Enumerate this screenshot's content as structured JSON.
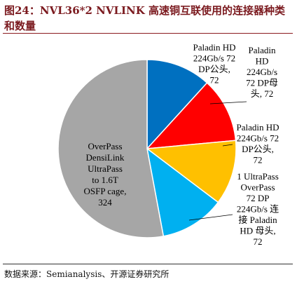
{
  "figure": {
    "title": "图24：NVL36*2 NVLINK 高速铜互联使用的连接器种类和数量",
    "source": "数据来源：Semianalysis、开源证券研究所"
  },
  "chart_data": {
    "type": "pie",
    "title": "",
    "slices": [
      {
        "label": "Paladin HD 224Gb/s 72 DP公头, 72",
        "value": 72,
        "color": "#0070c0",
        "label_lines": [
          "Paladin HD",
          "224Gb/s 72",
          "DP公头,",
          "72"
        ]
      },
      {
        "label": "Paladin HD 224Gb/s 72 DP母头, 72",
        "value": 72,
        "color": "#ff0000",
        "label_lines": [
          "Paladin",
          "HD",
          "224Gb/s",
          "72 DP母",
          "头, 72"
        ]
      },
      {
        "label": "Paladin HD 224Gb/s 72 DP公头, 72",
        "value": 72,
        "color": "#ffc000",
        "label_lines": [
          "Paladin HD",
          "224Gb/s 72",
          "DP公头,",
          "72"
        ]
      },
      {
        "label": "1 UltraPass OverPass 72 DP 224Gb/s 连接 Paladin HD 母头, 72",
        "value": 72,
        "color": "#00b0f0",
        "label_lines": [
          "1 UltraPass",
          "OverPass",
          "72 DP",
          "224Gb/s 连",
          "接 Paladin",
          "HD 母头,",
          "72"
        ]
      },
      {
        "label": "OverPass DensiLink UltraPass to 1.6T OSFP cage, 324",
        "value": 324,
        "color": "#a6a6a6",
        "label_lines": [
          "OverPass",
          "DensiLink",
          "UltraPass",
          "to 1.6T",
          "OSFP cage,",
          "324"
        ]
      }
    ]
  }
}
